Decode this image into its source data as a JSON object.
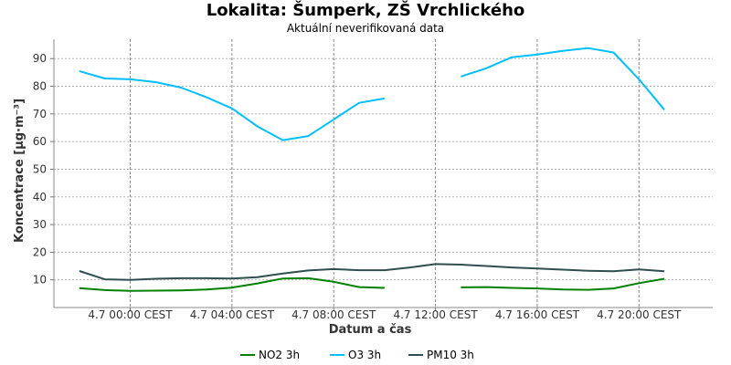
{
  "chart_data": {
    "type": "line",
    "title": "Lokalita: Šumperk, ZŠ Vrchlického",
    "subtitle": "Aktuální neverifikovaná data",
    "xlabel": "Datum a čas",
    "ylabel": "Koncentrace [µg·m⁻³]",
    "ylim": [
      0,
      97
    ],
    "yticks": [
      10,
      20,
      30,
      40,
      50,
      60,
      70,
      80,
      90
    ],
    "x_tick_labels": [
      "4.7 00:00 CEST",
      "4.7 04:00 CEST",
      "4.7 08:00 CEST",
      "4.7 12:00 CEST",
      "4.7 16:00 CEST",
      "4.7 20:00 CEST"
    ],
    "x_tick_hours": [
      0,
      4,
      8,
      12,
      16,
      20
    ],
    "xlim_hours": [
      -3,
      22.9
    ],
    "grid": true,
    "legend_position": "bottom-center",
    "x_hours": [
      -2,
      -1,
      0,
      1,
      2,
      3,
      4,
      5,
      6,
      7,
      8,
      9,
      10,
      11,
      12,
      13,
      14,
      15,
      16,
      17,
      18,
      19,
      20,
      21
    ],
    "series": [
      {
        "name": "NO2 3h",
        "color": "#008000",
        "values": [
          7,
          6.3,
          6,
          6.1,
          6.2,
          6.5,
          7.2,
          8.7,
          10.5,
          10.6,
          9.3,
          7.4,
          7.1,
          null,
          null,
          7.3,
          7.4,
          7.1,
          6.9,
          6.5,
          6.4,
          6.9,
          8.8,
          10.4
        ]
      },
      {
        "name": "O3 3h",
        "color": "#00bfff",
        "values": [
          85.5,
          82.8,
          82.5,
          81.5,
          79.5,
          76,
          72,
          65.5,
          60.5,
          62,
          68,
          74,
          75.6,
          null,
          null,
          83.5,
          86.5,
          90.5,
          91.5,
          92.8,
          93.8,
          92.2,
          82.5,
          71.5
        ]
      },
      {
        "name": "PM10 3h",
        "color": "#2f4f4f",
        "values": [
          13.2,
          10.2,
          10,
          10.4,
          10.6,
          10.6,
          10.5,
          11,
          12.3,
          13.4,
          13.9,
          13.5,
          13.5,
          14.5,
          15.7,
          15.5,
          15,
          14.5,
          14.1,
          13.7,
          13.3,
          13.1,
          13.8,
          13.1
        ]
      }
    ]
  }
}
